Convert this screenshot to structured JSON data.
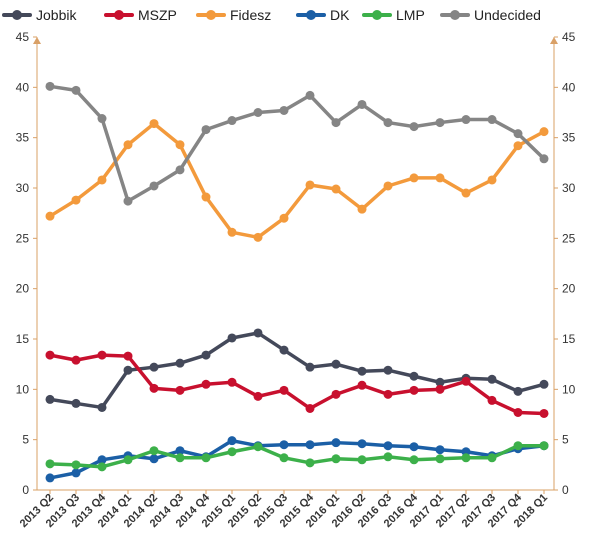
{
  "chart_data": {
    "type": "line",
    "title": "",
    "xlabel": "",
    "ylabel": "",
    "ylim": [
      0,
      45
    ],
    "yticks": [
      0,
      5,
      10,
      15,
      20,
      25,
      30,
      35,
      40,
      45
    ],
    "grid": false,
    "legend_position": "top",
    "axes": "left-and-right",
    "categories": [
      "2013 Q2",
      "2013 Q3",
      "2013 Q4",
      "2014 Q1",
      "2014 Q2",
      "2014 Q3",
      "2014 Q4",
      "2015 Q1",
      "2015 Q2",
      "2015 Q3",
      "2015 Q4",
      "2016 Q1",
      "2016 Q2",
      "2016 Q3",
      "2016 Q4",
      "2017 Q1",
      "2017 Q2",
      "2017 Q3",
      "2017 Q4",
      "2018 Q1"
    ],
    "series": [
      {
        "name": "Jobbik",
        "color": "#44495a",
        "values": [
          9.0,
          8.6,
          8.2,
          11.9,
          12.2,
          12.6,
          13.4,
          15.1,
          15.6,
          13.9,
          12.2,
          12.5,
          11.8,
          11.9,
          11.3,
          10.7,
          11.1,
          11.0,
          9.8,
          10.5
        ]
      },
      {
        "name": "MSZP",
        "color": "#c8102e",
        "values": [
          13.4,
          12.9,
          13.4,
          13.3,
          10.1,
          9.9,
          10.5,
          10.7,
          9.3,
          9.9,
          8.1,
          9.5,
          10.4,
          9.5,
          9.9,
          10.0,
          10.8,
          8.9,
          7.7,
          7.6
        ]
      },
      {
        "name": "Fidesz",
        "color": "#f39a3c",
        "values": [
          27.2,
          28.8,
          30.8,
          34.3,
          36.4,
          34.3,
          29.1,
          25.6,
          25.1,
          27.0,
          30.3,
          29.9,
          27.9,
          30.2,
          31.0,
          31.0,
          29.5,
          30.8,
          34.2,
          35.6
        ]
      },
      {
        "name": "DK",
        "color": "#1b5fa6",
        "values": [
          1.2,
          1.7,
          3.0,
          3.4,
          3.1,
          3.9,
          3.3,
          4.9,
          4.4,
          4.5,
          4.5,
          4.7,
          4.6,
          4.4,
          4.3,
          4.0,
          3.8,
          3.4,
          4.1,
          4.4
        ]
      },
      {
        "name": "LMP",
        "color": "#3cb04a",
        "values": [
          2.6,
          2.5,
          2.3,
          3.0,
          3.9,
          3.2,
          3.2,
          3.8,
          4.3,
          3.2,
          2.7,
          3.1,
          3.0,
          3.3,
          3.0,
          3.1,
          3.2,
          3.2,
          4.4,
          4.4
        ]
      },
      {
        "name": "Undecided",
        "color": "#858585",
        "values": [
          40.1,
          39.7,
          36.9,
          28.7,
          30.2,
          31.8,
          35.8,
          36.7,
          37.5,
          37.7,
          39.2,
          36.5,
          38.3,
          36.5,
          36.1,
          36.5,
          36.8,
          36.8,
          35.4,
          32.9
        ]
      }
    ]
  }
}
